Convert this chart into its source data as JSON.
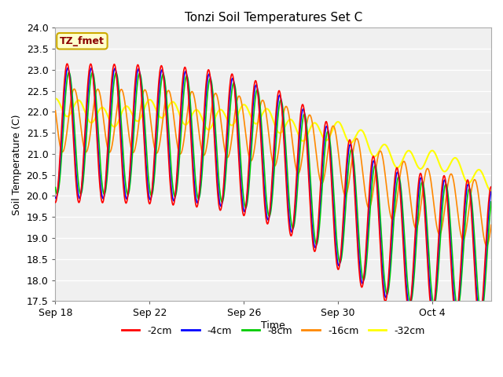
{
  "title": "Tonzi Soil Temperatures Set C",
  "xlabel": "Time",
  "ylabel": "Soil Temperature (C)",
  "ylim": [
    17.5,
    24.0
  ],
  "yticks": [
    17.5,
    18.0,
    18.5,
    19.0,
    19.5,
    20.0,
    20.5,
    21.0,
    21.5,
    22.0,
    22.5,
    23.0,
    23.5,
    24.0
  ],
  "xtick_labels": [
    "Sep 18",
    "Sep 22",
    "Sep 26",
    "Sep 30",
    "Oct 4"
  ],
  "xtick_positions": [
    0,
    4,
    8,
    12,
    16
  ],
  "xlim": [
    0,
    18.5
  ],
  "colors": {
    "-2cm": "#FF0000",
    "-4cm": "#0000FF",
    "-8cm": "#00CC00",
    "-16cm": "#FF8800",
    "-32cm": "#FFFF00"
  },
  "legend_label": "TZ_fmet",
  "bg_color": "#FFFFFF",
  "plot_bg_color": "#F0F0F0",
  "grid_color": "#FFFFFF",
  "n_days": 18.5,
  "n_points": 1000
}
